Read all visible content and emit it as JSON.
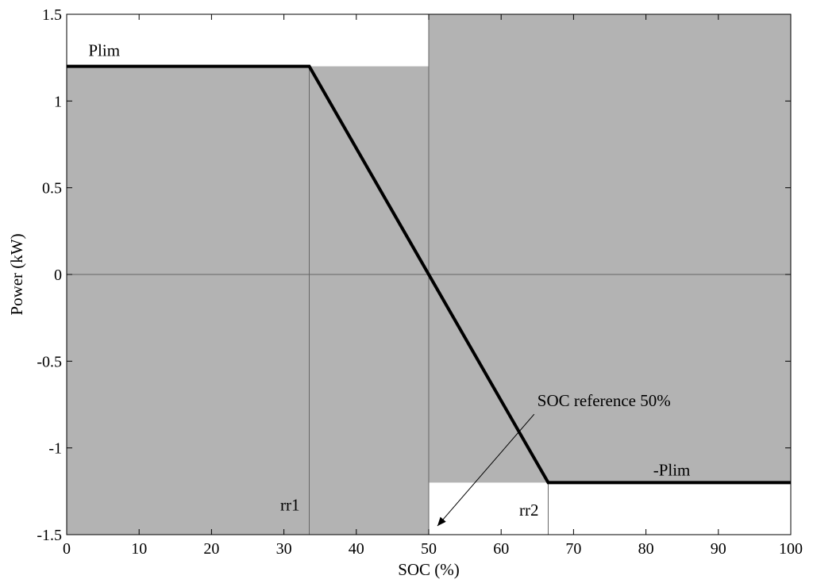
{
  "chart_data": {
    "type": "line",
    "xlabel": "SOC (%)",
    "ylabel": "Power (kW)",
    "xlim": [
      0,
      100
    ],
    "ylim": [
      -1.5,
      1.5
    ],
    "xticks": [
      0,
      10,
      20,
      30,
      40,
      50,
      60,
      70,
      80,
      90,
      100
    ],
    "yticks": [
      -1.5,
      -1,
      -0.5,
      0,
      0.5,
      1,
      1.5
    ],
    "xtick_labels": [
      "0",
      "10",
      "20",
      "30",
      "40",
      "50",
      "60",
      "70",
      "80",
      "90",
      "100"
    ],
    "ytick_labels": [
      "-1.5",
      "-1",
      "-0.5",
      "0",
      "0.5",
      "1",
      "1.5"
    ],
    "grid": false,
    "series": [
      {
        "x": [
          0,
          33.5,
          66.5,
          100
        ],
        "y": [
          1.2,
          1.2,
          -1.2,
          -1.2
        ]
      }
    ],
    "shaded_regions": [
      {
        "x": [
          0,
          50
        ],
        "y": [
          -1.5,
          1.2
        ]
      },
      {
        "x": [
          50,
          100
        ],
        "y": [
          -1.2,
          1.5
        ]
      }
    ],
    "reference_lines": [
      {
        "orientation": "horizontal",
        "value": 0
      },
      {
        "orientation": "vertical",
        "value": 33.5,
        "y_range": [
          -1.5,
          1.2
        ]
      },
      {
        "orientation": "vertical",
        "value": 50,
        "y_range": [
          -1.5,
          1.5
        ]
      },
      {
        "orientation": "vertical",
        "value": 66.5,
        "y_range": [
          -1.5,
          -1.2
        ]
      }
    ],
    "annotations": [
      {
        "name": "plim",
        "text": "Plim",
        "x": 3,
        "y": 1.26
      },
      {
        "name": "neg-plim",
        "text": "-Plim",
        "x": 81,
        "y": -1.16
      },
      {
        "name": "rr1",
        "text": "rr1",
        "x": 29.5,
        "y": -1.36
      },
      {
        "name": "rr2",
        "text": "rr2",
        "x": 62.5,
        "y": -1.39
      },
      {
        "name": "soc-reference",
        "text": "SOC reference 50%",
        "x": 65,
        "y": -0.76,
        "arrow_to": [
          51.2,
          -1.45
        ]
      }
    ],
    "colors": {
      "shade": "#b3b3b3",
      "line": "#000000",
      "reference": "#666666"
    }
  }
}
